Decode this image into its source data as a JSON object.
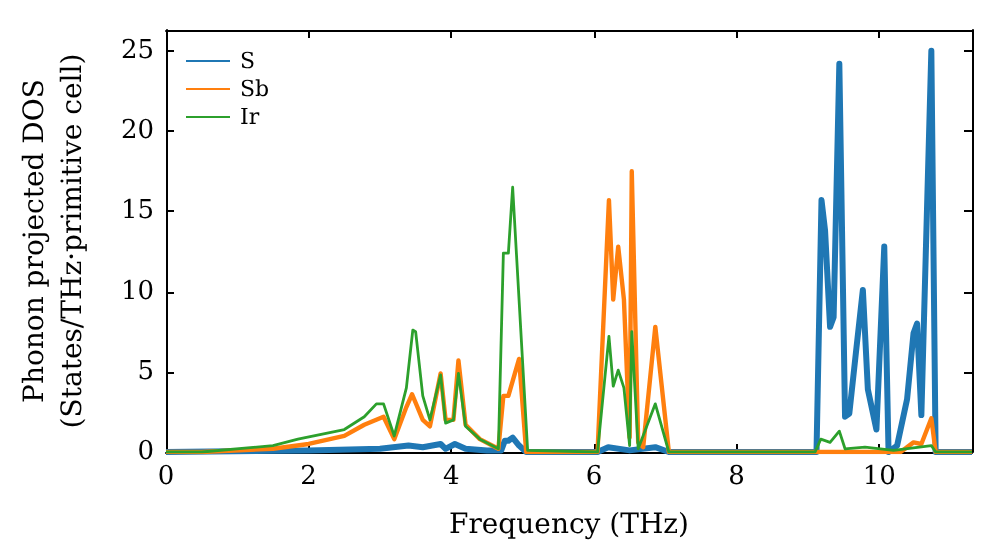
{
  "chart_data": {
    "type": "line",
    "xlabel": "Frequency (THz)",
    "ylabel": "Phonon projected DOS\n(States/THz·primitive cell)",
    "xlim": [
      0,
      11.3
    ],
    "xticks": [
      0,
      2,
      4,
      6,
      8,
      10
    ],
    "ylim": [
      0,
      26.3
    ],
    "yticks": [
      0,
      5,
      10,
      15,
      20,
      25
    ],
    "legend": "top left",
    "grid": false,
    "marker": "none",
    "line_style": "solid",
    "series": [
      {
        "name": "S",
        "color": "#1f77b4",
        "x": [
          0,
          2,
          3,
          3.4,
          3.6,
          3.85,
          3.92,
          4.05,
          4.2,
          4.5,
          4.7,
          4.75,
          4.8,
          4.86,
          4.95,
          5.05,
          6.05,
          6.2,
          6.5,
          6.86,
          7.05,
          9.12,
          9.19,
          9.24,
          9.31,
          9.36,
          9.44,
          9.52,
          9.58,
          9.68,
          9.77,
          9.84,
          9.96,
          10.07,
          10.13,
          10.25,
          10.39,
          10.48,
          10.53,
          10.59,
          10.73,
          10.79,
          11.3
        ],
        "values": [
          0,
          0.1,
          0.2,
          0.4,
          0.3,
          0.5,
          0.2,
          0.5,
          0.2,
          0.1,
          0.1,
          0.7,
          0.7,
          0.9,
          0.4,
          0,
          0,
          0.3,
          0.1,
          0.3,
          0,
          0,
          15.7,
          13.8,
          7.8,
          8.4,
          24.2,
          2.2,
          2.4,
          6.5,
          10.1,
          3.9,
          1.4,
          12.8,
          0,
          0.4,
          3.3,
          7.4,
          8,
          2.3,
          25,
          0,
          0
        ]
      },
      {
        "name": "Sb",
        "color": "#ff7f0e",
        "x": [
          0,
          0.5,
          1.5,
          2,
          2.5,
          2.78,
          3.05,
          3.2,
          3.37,
          3.45,
          3.6,
          3.7,
          3.85,
          3.92,
          4.03,
          4.1,
          4.2,
          4.4,
          4.66,
          4.73,
          4.8,
          4.95,
          5.05,
          6.05,
          6.21,
          6.27,
          6.34,
          6.42,
          6.5,
          6.53,
          6.62,
          6.69,
          6.86,
          7.05,
          10.3,
          10.48,
          10.59,
          10.73,
          10.79,
          11.3
        ],
        "values": [
          0,
          0,
          0.2,
          0.5,
          1,
          1.7,
          2.2,
          0.8,
          2.8,
          3.6,
          2,
          1.6,
          4.9,
          2,
          2,
          5.7,
          1.7,
          0.8,
          0.2,
          3.5,
          3.5,
          5.8,
          0,
          0,
          15.7,
          9.5,
          12.8,
          9.5,
          0.9,
          17.5,
          0.6,
          0.3,
          7.8,
          0,
          0,
          0.6,
          0.5,
          2.1,
          0,
          0
        ]
      },
      {
        "name": "Ir",
        "color": "#2ca02c",
        "x": [
          0,
          0.5,
          1.5,
          1.85,
          2.5,
          2.78,
          2.95,
          3.05,
          3.2,
          3.37,
          3.46,
          3.5,
          3.6,
          3.7,
          3.85,
          3.92,
          4.03,
          4.1,
          4.2,
          4.4,
          4.66,
          4.73,
          4.8,
          4.86,
          5.07,
          6.05,
          6.21,
          6.27,
          6.34,
          6.42,
          6.5,
          6.53,
          6.62,
          6.86,
          7.05,
          9.1,
          9.18,
          9.31,
          9.44,
          9.52,
          9.8,
          10.2,
          10.73,
          10.79,
          11.3
        ],
        "values": [
          0,
          0,
          0.4,
          0.8,
          1.4,
          2.2,
          3,
          3,
          1,
          4,
          7.6,
          7.5,
          3.5,
          2,
          4.8,
          1.8,
          2,
          4.9,
          1.6,
          0.8,
          0.2,
          12.4,
          12.4,
          16.5,
          0.1,
          0,
          7.2,
          4.1,
          5.1,
          4,
          0.4,
          7.5,
          0.2,
          3,
          0,
          0,
          0.8,
          0.6,
          1.3,
          0.2,
          0.3,
          0.1,
          0.4,
          0,
          0
        ]
      }
    ]
  }
}
